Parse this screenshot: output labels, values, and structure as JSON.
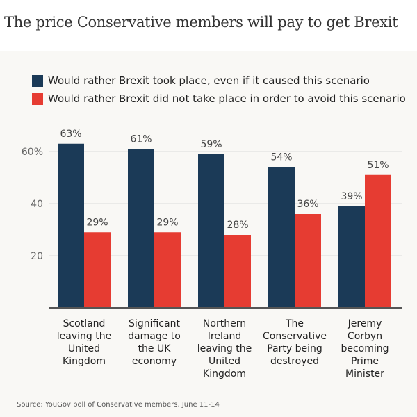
{
  "title": "The price Conservative members will pay to get Brexit",
  "source": "Source: YouGov poll of Conservative members, June 11-14",
  "chart_data": {
    "type": "bar",
    "categories": [
      [
        "Scotland",
        "leaving the",
        "United",
        "Kingdom"
      ],
      [
        "Significant",
        "damage to",
        "the UK",
        "economy"
      ],
      [
        "Northern",
        "Ireland",
        "leaving the",
        "United",
        "Kingdom"
      ],
      [
        "The",
        "Conservative",
        "Party being",
        "destroyed"
      ],
      [
        "Jeremy",
        "Corbyn",
        "becoming",
        "Prime",
        "Minister"
      ]
    ],
    "series": [
      {
        "name": "Would rather Brexit took place, even if it caused this scenario",
        "color": "#1b3a57",
        "values": [
          63,
          61,
          59,
          54,
          39
        ],
        "labels": [
          "63%",
          "61%",
          "59%",
          "54%",
          "39%"
        ]
      },
      {
        "name": "Would rather Brexit did not take place in order to avoid this scenario",
        "color": "#e63c32",
        "values": [
          29,
          29,
          28,
          36,
          51
        ],
        "labels": [
          "29%",
          "29%",
          "28%",
          "36%",
          "51%"
        ]
      }
    ],
    "yticks": [
      {
        "value": 20,
        "label": "20"
      },
      {
        "value": 40,
        "label": "40"
      },
      {
        "value": 60,
        "label": "60%"
      }
    ],
    "ylim": [
      0,
      70
    ],
    "grid": true,
    "legend": "top-left"
  }
}
